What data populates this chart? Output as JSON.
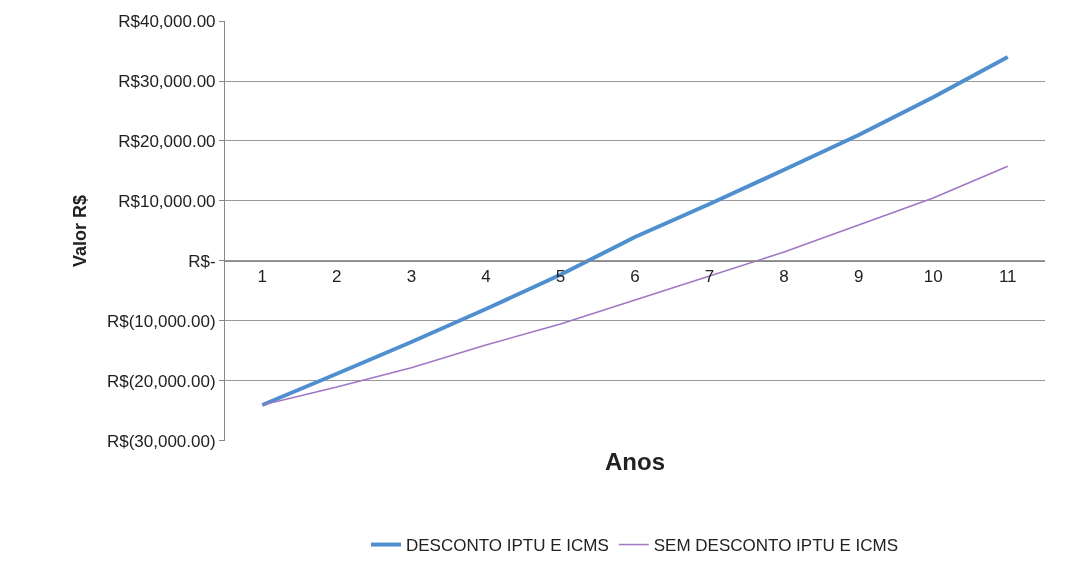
{
  "chart_data": {
    "type": "line",
    "xlabel": "Anos",
    "ylabel": "Valor R$",
    "categories": [
      "1",
      "2",
      "3",
      "4",
      "5",
      "6",
      "7",
      "8",
      "9",
      "10",
      "11"
    ],
    "series": [
      {
        "name": "DESCONTO IPTU E ICMS",
        "color": "#4f8fd0",
        "values": [
          -24000,
          -18800,
          -13500,
          -8000,
          -2300,
          4000,
          9500,
          15200,
          21000,
          27300,
          34000
        ]
      },
      {
        "name": "SEM DESCONTO IPTU E ICMS",
        "color": "#a077c4",
        "values": [
          -24000,
          -21000,
          -17800,
          -14000,
          -10500,
          -6500,
          -2500,
          1500,
          6000,
          10500,
          15800
        ]
      }
    ],
    "ylim": [
      -30000,
      40000
    ],
    "yticks": [
      {
        "value": -30000,
        "label": "R$(30,000.00)"
      },
      {
        "value": -20000,
        "label": "R$(20,000.00)"
      },
      {
        "value": -10000,
        "label": "R$(10,000.00)"
      },
      {
        "value": 0,
        "label": "R$-"
      },
      {
        "value": 10000,
        "label": "R$10,000.00"
      },
      {
        "value": 20000,
        "label": "R$20,000.00"
      },
      {
        "value": 30000,
        "label": "R$30,000.00"
      },
      {
        "value": 40000,
        "label": "R$40,000.00"
      }
    ],
    "grid": "y",
    "legend": "bottom",
    "marker": "none",
    "line_style": "solid"
  }
}
